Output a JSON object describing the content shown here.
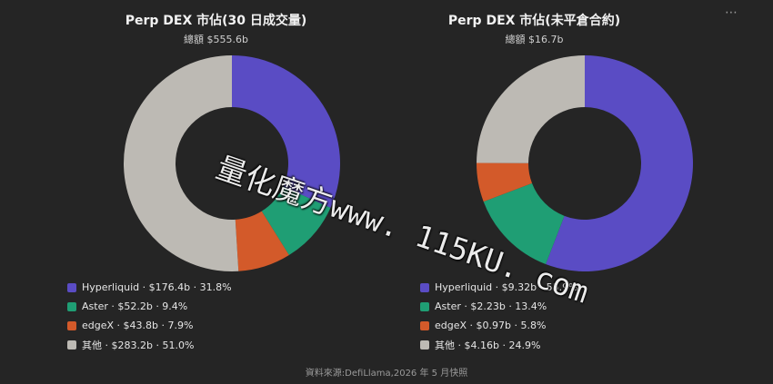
{
  "menu_icon": "more-horizontal-icon",
  "source_note": "資料來源:DefiLlama,2026 年 5 月快照",
  "watermark": "量化魔方www. 115KU. com",
  "chart_data": [
    {
      "type": "pie",
      "title": "Perp DEX 市佔(30 日成交量)",
      "subtitle": "總額 $555.6b",
      "series": [
        {
          "name": "Hyperliquid",
          "value_label": "$176.4b",
          "value": 176.4,
          "percent_label": "31.8%",
          "percent": 31.8,
          "color": "#5a4cc4"
        },
        {
          "name": "Aster",
          "value_label": "$52.2b",
          "value": 52.2,
          "percent_label": "9.4%",
          "percent": 9.4,
          "color": "#1f9e74"
        },
        {
          "name": "edgeX",
          "value_label": "$43.8b",
          "value": 43.8,
          "percent_label": "7.9%",
          "percent": 7.9,
          "color": "#d35a2a"
        },
        {
          "name": "其他",
          "value_label": "$283.2b",
          "value": 283.2,
          "percent_label": "51.0%",
          "percent": 51.0,
          "color": "#bdbab4"
        }
      ]
    },
    {
      "type": "pie",
      "title": "Perp DEX 市佔(未平倉合約)",
      "subtitle": "總額 $16.7b",
      "series": [
        {
          "name": "Hyperliquid",
          "value_label": "$9.32b",
          "value": 9.32,
          "percent_label": "55.9%",
          "percent": 55.9,
          "color": "#5a4cc4"
        },
        {
          "name": "Aster",
          "value_label": "$2.23b",
          "value": 2.23,
          "percent_label": "13.4%",
          "percent": 13.4,
          "color": "#1f9e74"
        },
        {
          "name": "edgeX",
          "value_label": "$0.97b",
          "value": 0.97,
          "percent_label": "5.8%",
          "percent": 5.8,
          "color": "#d35a2a"
        },
        {
          "name": "其他",
          "value_label": "$4.16b",
          "value": 4.16,
          "percent_label": "24.9%",
          "percent": 24.9,
          "color": "#bdbab4"
        }
      ]
    }
  ]
}
